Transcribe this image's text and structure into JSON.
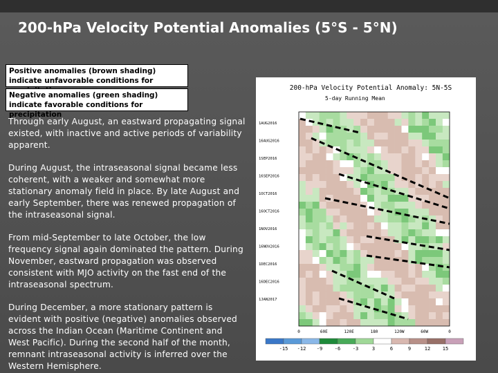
{
  "title": "200-hPa Velocity Potential Anomalies (5°S - 5°N)",
  "boxes": [
    "Positive anomalies (brown shading) indicate unfavorable conditions for precipitation",
    "Negative anomalies (green shading) indicate favorable conditions for precipitation"
  ],
  "paragraphs": [
    "Through early August, an eastward propagating signal existed, with inactive and active periods of variability apparent.",
    "During August, the intraseasonal signal became less coherent, with a weaker and somewhat more stationary anomaly field in place. By late August and early September, there was renewed propagation of the intraseasonal signal.",
    "From mid-September to late October, the low frequency signal again dominated the pattern. During November, eastward propagation was observed consistent with MJO activity on the fast end of the intraseasonal spectrum.",
    "During December, a more stationary pattern is evident with positive (negative) anomalies observed across the Indian Ocean (Maritime Continent and West Pacific). During the second half of the month, remnant intraseasonal activity is inferred over the Western Hemisphere."
  ],
  "figure": {
    "title": "200-hPa Velocity Potential Anomaly: 5N-5S",
    "subtitle": "5-day Running Mean",
    "y_labels": [
      "1AUG2016",
      "16AUG2016",
      "1SEP2016",
      "16SEP2016",
      "1OCT2016",
      "16OCT2016",
      "1NOV2016",
      "16NOV2016",
      "1DEC2016",
      "16DEC2016",
      "1JAN2017"
    ],
    "x_labels": [
      "0",
      "60E",
      "120E",
      "180",
      "120W",
      "60W",
      "0"
    ],
    "colorbar_labels": [
      "-15",
      "-12",
      "-9",
      "-6",
      "-3",
      "3",
      "6",
      "9",
      "12",
      "15"
    ]
  }
}
